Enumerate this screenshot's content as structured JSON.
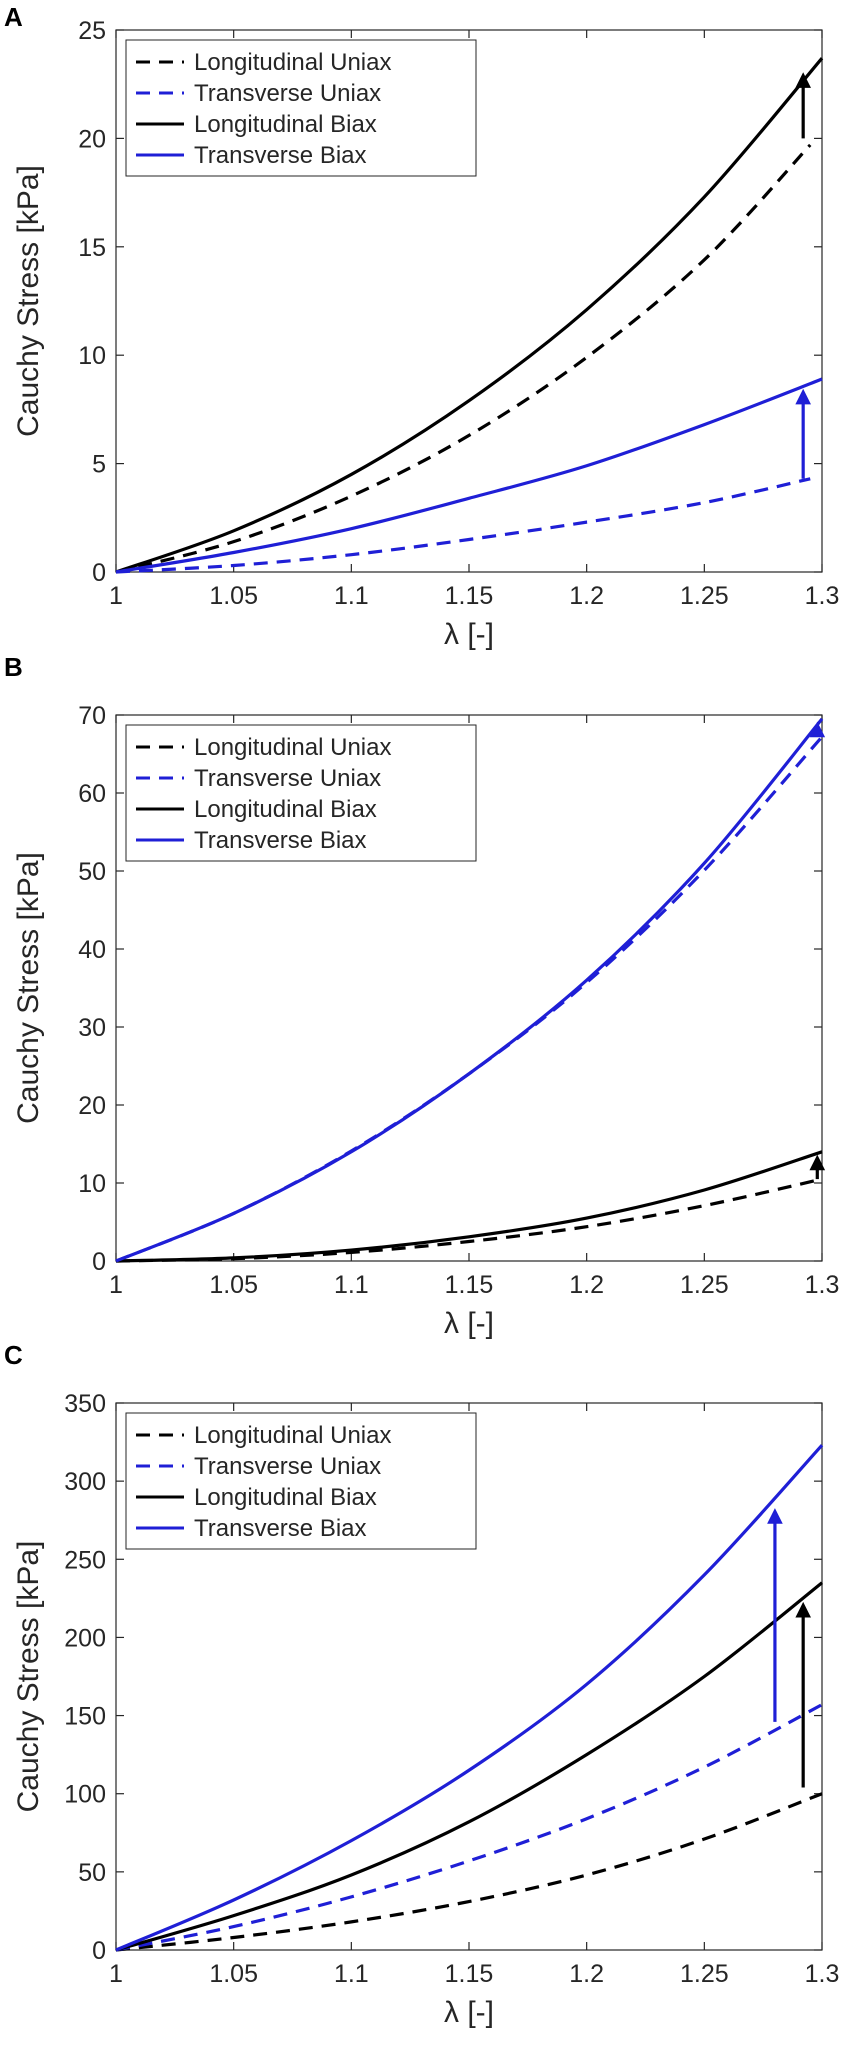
{
  "chart_data": [
    {
      "type": "line",
      "panel_label": "A",
      "xlabel": "λ [-]",
      "ylabel": "Cauchy Stress [kPa]",
      "xlim": [
        1,
        1.3
      ],
      "ylim": [
        0,
        25
      ],
      "xticks": [
        1,
        1.05,
        1.1,
        1.15,
        1.2,
        1.25,
        1.3
      ],
      "yticks": [
        0,
        5,
        10,
        15,
        20,
        25
      ],
      "legend_position": "top-left",
      "grid": false,
      "series": [
        {
          "name": "Longitudinal Uniax",
          "style": "dashed",
          "color": "#000000",
          "x": [
            1,
            1.05,
            1.1,
            1.15,
            1.2,
            1.25,
            1.295
          ],
          "y": [
            0,
            1.4,
            3.5,
            6.3,
            9.9,
            14.4,
            19.7
          ]
        },
        {
          "name": "Transverse Uniax",
          "style": "dashed",
          "color": "#1f1fd6",
          "x": [
            1,
            1.05,
            1.1,
            1.15,
            1.2,
            1.25,
            1.295
          ],
          "y": [
            0,
            0.3,
            0.8,
            1.5,
            2.3,
            3.2,
            4.3
          ]
        },
        {
          "name": "Longitudinal Biax",
          "style": "solid",
          "color": "#000000",
          "x": [
            1,
            1.05,
            1.1,
            1.15,
            1.2,
            1.25,
            1.3
          ],
          "y": [
            0,
            1.9,
            4.5,
            7.9,
            12.1,
            17.3,
            23.7
          ]
        },
        {
          "name": "Transverse Biax",
          "style": "solid",
          "color": "#1f1fd6",
          "x": [
            1,
            1.05,
            1.1,
            1.15,
            1.2,
            1.25,
            1.3
          ],
          "y": [
            0,
            0.9,
            2.0,
            3.4,
            4.9,
            6.8,
            8.9
          ]
        }
      ],
      "annotations": [
        {
          "type": "arrow",
          "color": "#000000",
          "x": 1.292,
          "y_from": 20.0,
          "y_to": 23.0
        },
        {
          "type": "arrow",
          "color": "#1f1fd6",
          "x": 1.292,
          "y_from": 4.3,
          "y_to": 8.4
        }
      ]
    },
    {
      "type": "line",
      "panel_label": "B",
      "xlabel": "λ [-]",
      "ylabel": "Cauchy Stress [kPa]",
      "xlim": [
        1,
        1.3
      ],
      "ylim": [
        0,
        70
      ],
      "xticks": [
        1,
        1.05,
        1.1,
        1.15,
        1.2,
        1.25,
        1.3
      ],
      "yticks": [
        0,
        10,
        20,
        30,
        40,
        50,
        60,
        70
      ],
      "legend_position": "top-left",
      "grid": false,
      "series": [
        {
          "name": "Longitudinal Uniax",
          "style": "dashed",
          "color": "#000000",
          "x": [
            1,
            1.05,
            1.1,
            1.15,
            1.2,
            1.25,
            1.3
          ],
          "y": [
            0,
            0.3,
            1.1,
            2.5,
            4.4,
            7.1,
            10.5
          ]
        },
        {
          "name": "Transverse Uniax",
          "style": "dashed",
          "color": "#1f1fd6",
          "x": [
            1,
            1.05,
            1.1,
            1.15,
            1.2,
            1.25,
            1.3
          ],
          "y": [
            0,
            6.1,
            14.1,
            24.0,
            35.7,
            50.1,
            67.2
          ]
        },
        {
          "name": "Longitudinal Biax",
          "style": "solid",
          "color": "#000000",
          "x": [
            1,
            1.05,
            1.1,
            1.15,
            1.2,
            1.25,
            1.3
          ],
          "y": [
            0,
            0.4,
            1.4,
            3.1,
            5.5,
            9.1,
            14.0
          ]
        },
        {
          "name": "Transverse Biax",
          "style": "solid",
          "color": "#1f1fd6",
          "x": [
            1,
            1.05,
            1.1,
            1.15,
            1.2,
            1.25,
            1.3
          ],
          "y": [
            0,
            6.1,
            14.0,
            24.0,
            36.0,
            51.0,
            69.5
          ]
        }
      ],
      "annotations": [
        {
          "type": "arrow",
          "color": "#000000",
          "x": 1.298,
          "y_from": 10.5,
          "y_to": 13.5
        },
        {
          "type": "arrow",
          "color": "#1f1fd6",
          "x": 1.298,
          "y_from": 67.2,
          "y_to": 69.0
        }
      ]
    },
    {
      "type": "line",
      "panel_label": "C",
      "xlabel": "λ [-]",
      "ylabel": "Cauchy Stress [kPa]",
      "xlim": [
        1,
        1.3
      ],
      "ylim": [
        0,
        350
      ],
      "xticks": [
        1,
        1.05,
        1.1,
        1.15,
        1.2,
        1.25,
        1.3
      ],
      "yticks": [
        0,
        50,
        100,
        150,
        200,
        250,
        300,
        350
      ],
      "legend_position": "top-left",
      "grid": false,
      "series": [
        {
          "name": "Longitudinal Uniax",
          "style": "dashed",
          "color": "#000000",
          "x": [
            1,
            1.05,
            1.1,
            1.15,
            1.2,
            1.25,
            1.3
          ],
          "y": [
            0,
            8,
            18,
            31,
            48,
            71,
            100
          ]
        },
        {
          "name": "Transverse Uniax",
          "style": "dashed",
          "color": "#1f1fd6",
          "x": [
            1,
            1.05,
            1.1,
            1.15,
            1.2,
            1.25,
            1.3
          ],
          "y": [
            0,
            15,
            34,
            57,
            84,
            117,
            157
          ]
        },
        {
          "name": "Longitudinal Biax",
          "style": "solid",
          "color": "#000000",
          "x": [
            1,
            1.05,
            1.1,
            1.15,
            1.2,
            1.25,
            1.3
          ],
          "y": [
            0,
            22,
            48,
            82,
            125,
            175,
            235
          ]
        },
        {
          "name": "Transverse Biax",
          "style": "solid",
          "color": "#1f1fd6",
          "x": [
            1,
            1.05,
            1.1,
            1.15,
            1.2,
            1.25,
            1.3
          ],
          "y": [
            0,
            32,
            70,
            115,
            170,
            240,
            323
          ]
        }
      ],
      "annotations": [
        {
          "type": "arrow",
          "color": "#000000",
          "x": 1.292,
          "y_from": 104,
          "y_to": 222
        },
        {
          "type": "arrow",
          "color": "#1f1fd6",
          "x": 1.28,
          "y_from": 146,
          "y_to": 282
        }
      ]
    }
  ]
}
